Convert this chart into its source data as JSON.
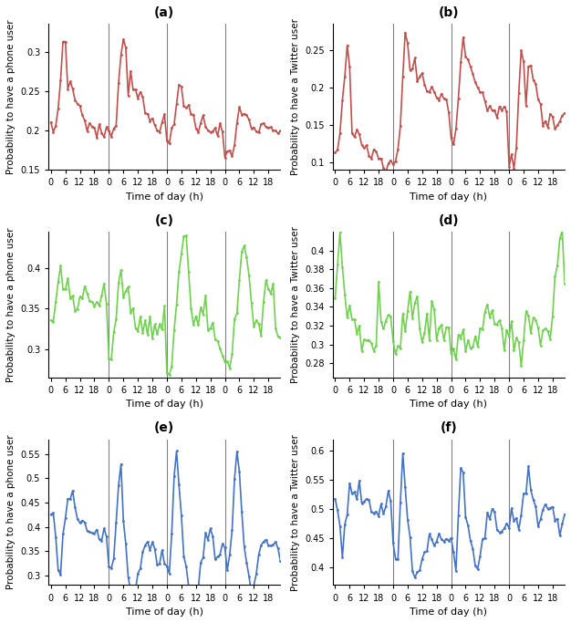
{
  "panels": [
    {
      "label": "(a)",
      "ylabel": "Probability to have a phone user",
      "ylim": [
        0.15,
        0.335
      ],
      "yticks": [
        0.15,
        0.2,
        0.25,
        0.3
      ],
      "color_idx": 0
    },
    {
      "label": "(b)",
      "ylabel": "Probability to have a Twitter user",
      "ylim": [
        0.09,
        0.285
      ],
      "yticks": [
        0.1,
        0.15,
        0.2,
        0.25
      ],
      "color_idx": 0
    },
    {
      "label": "(c)",
      "ylabel": "Probability to have a phone user",
      "ylim": [
        0.265,
        0.445
      ],
      "yticks": [
        0.3,
        0.35,
        0.4
      ],
      "color_idx": 1
    },
    {
      "label": "(d)",
      "ylabel": "Probability to have a Twitter user",
      "ylim": [
        0.265,
        0.42
      ],
      "yticks": [
        0.28,
        0.3,
        0.32,
        0.34,
        0.36,
        0.38,
        0.4
      ],
      "color_idx": 1
    },
    {
      "label": "(e)",
      "ylabel": "Probability to have a phone user",
      "ylim": [
        0.28,
        0.58
      ],
      "yticks": [
        0.3,
        0.35,
        0.4,
        0.45,
        0.5,
        0.55
      ],
      "color_idx": 2
    },
    {
      "label": "(f)",
      "ylabel": "Probability to have a Twitter user",
      "ylim": [
        0.37,
        0.62
      ],
      "yticks": [
        0.4,
        0.45,
        0.5,
        0.55,
        0.6
      ],
      "color_idx": 2
    }
  ],
  "colors": [
    "#c0504d",
    "#70d050",
    "#4472c4"
  ],
  "vline_positions": [
    24,
    48,
    72
  ],
  "xlabel": "Time of day (h)",
  "line_width": 1.2,
  "marker_size": 2.0
}
